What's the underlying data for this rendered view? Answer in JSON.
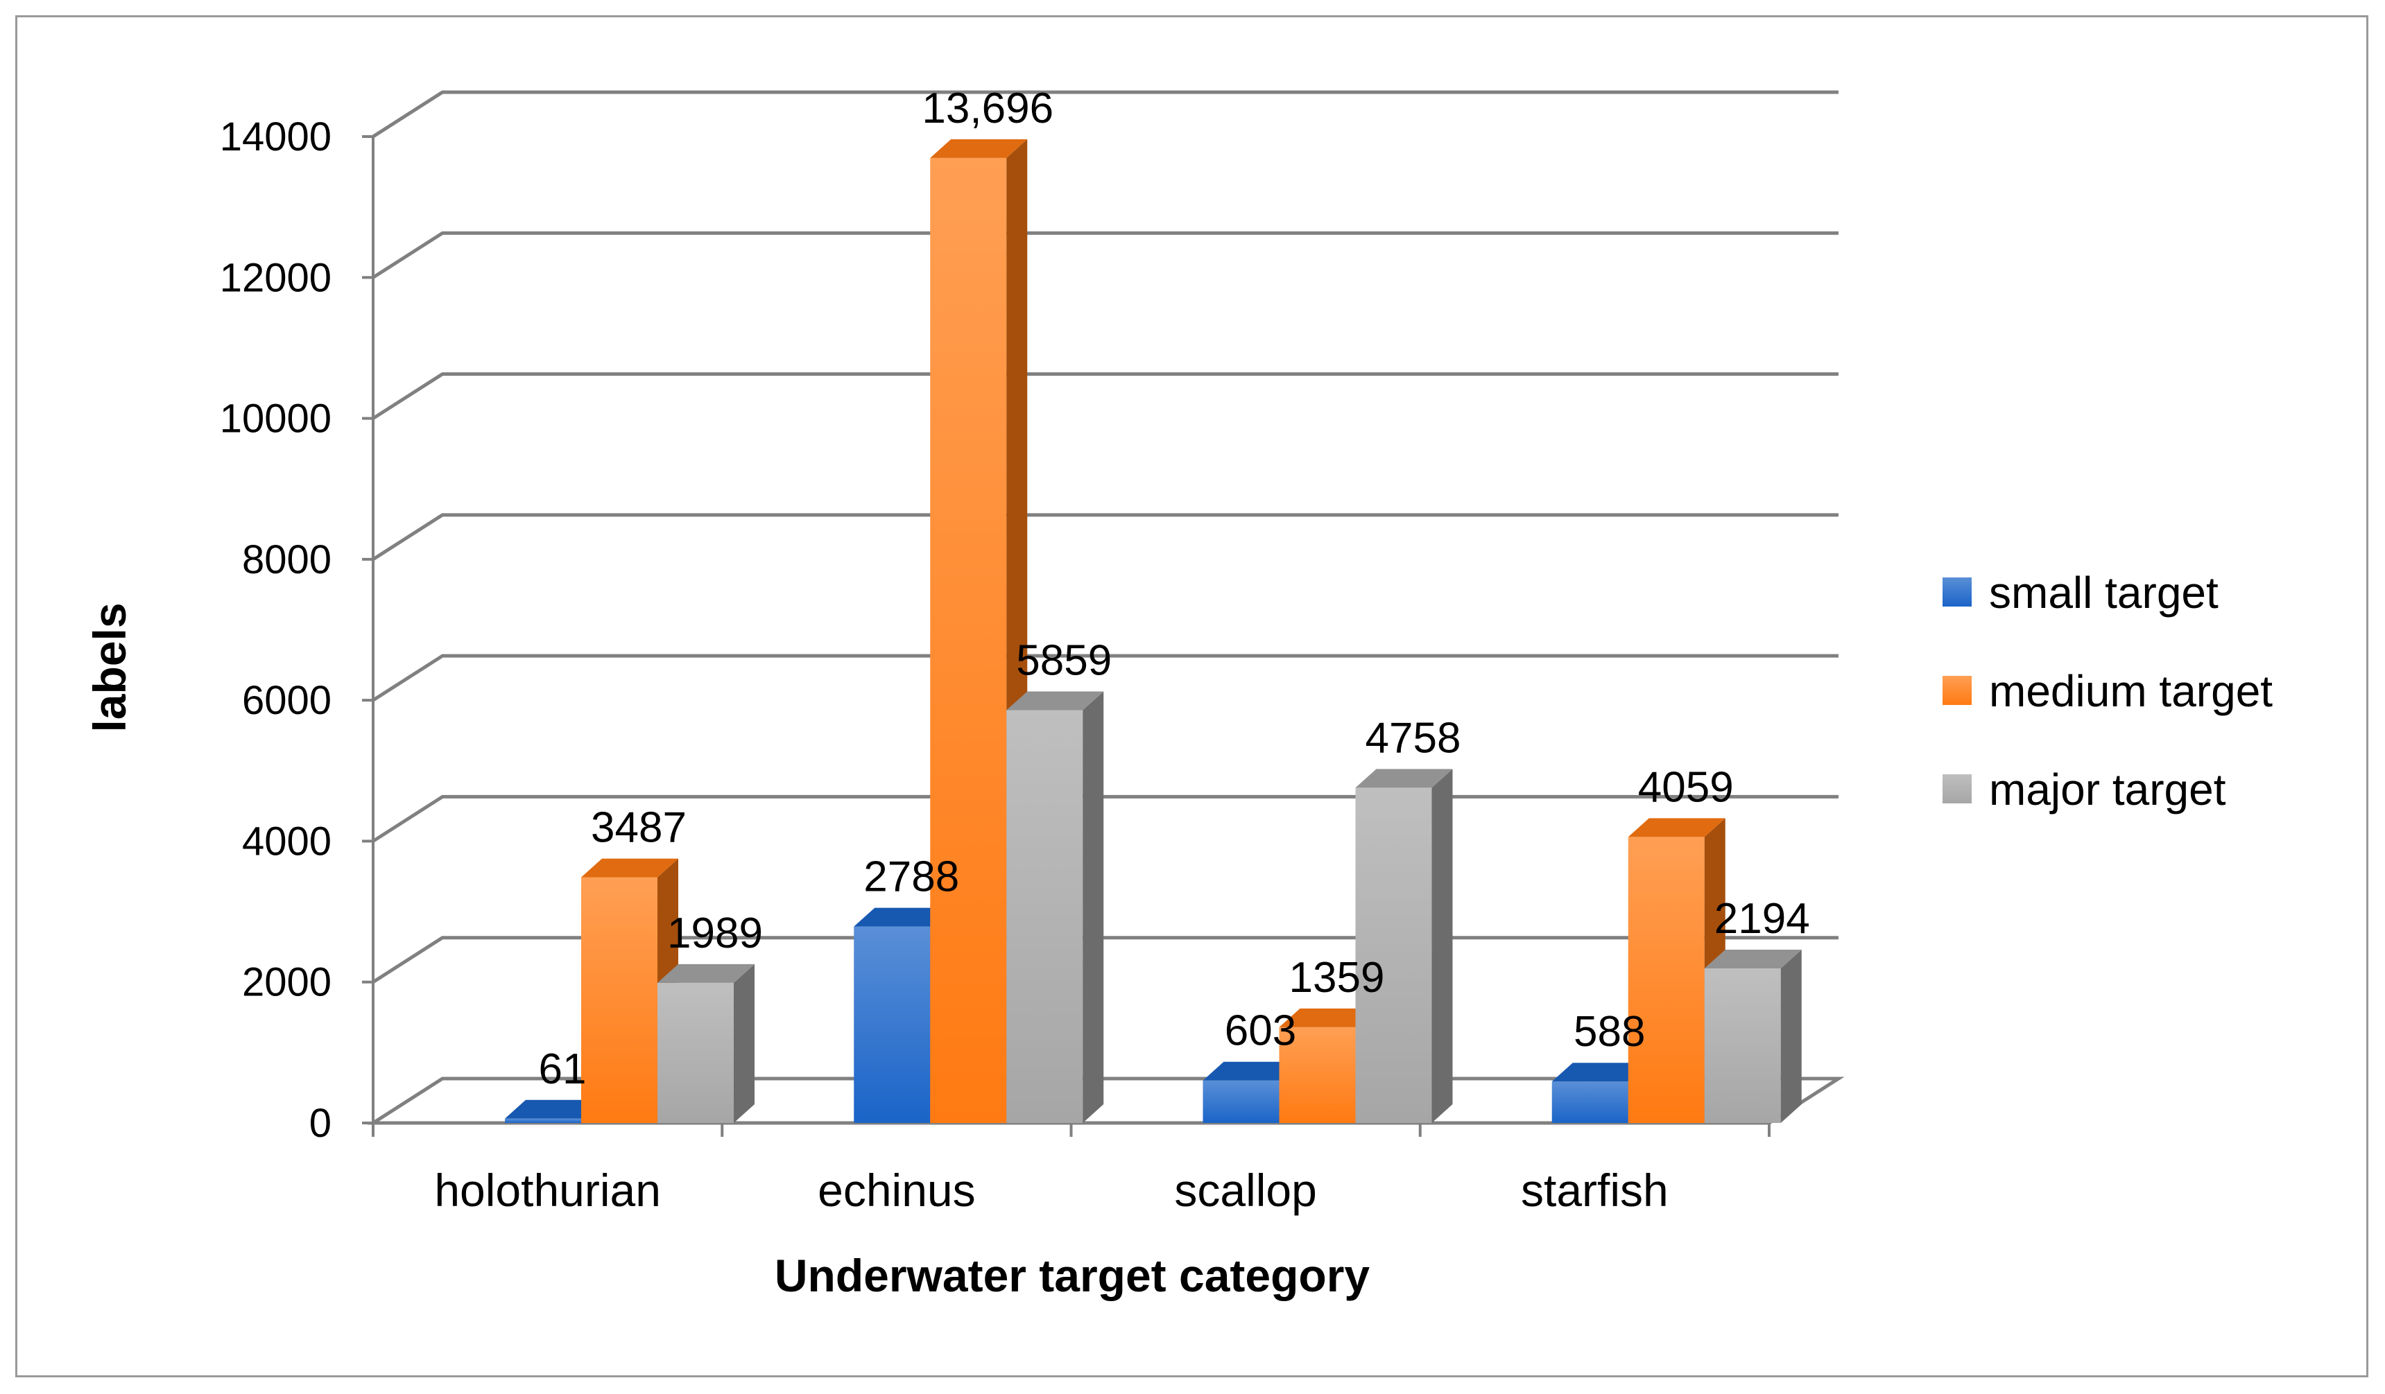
{
  "chart_data": {
    "type": "bar",
    "title": "",
    "xlabel": "Underwater target category",
    "ylabel": "labels",
    "ylim": [
      0,
      14000
    ],
    "yticks": [
      0,
      2000,
      4000,
      6000,
      8000,
      10000,
      12000,
      14000
    ],
    "categories": [
      "holothurian",
      "echinus",
      "scallop",
      "starfish"
    ],
    "series": [
      {
        "name": "small target",
        "color": "#1a64c8",
        "values": [
          61,
          2788,
          603,
          588
        ],
        "labels": [
          "61",
          "2788",
          "603",
          "588"
        ]
      },
      {
        "name": "medium target",
        "color": "#ff7a12",
        "values": [
          3487,
          13696,
          1359,
          4059
        ],
        "labels": [
          "3487",
          "13,696",
          "1359",
          "4059"
        ]
      },
      {
        "name": "major target",
        "color": "#a6a6a6",
        "values": [
          1989,
          5859,
          4758,
          2194
        ],
        "labels": [
          "1989",
          "5859",
          "4758",
          "2194"
        ]
      }
    ],
    "grid": true,
    "legend": "right",
    "style": "3d-clustered-column"
  }
}
